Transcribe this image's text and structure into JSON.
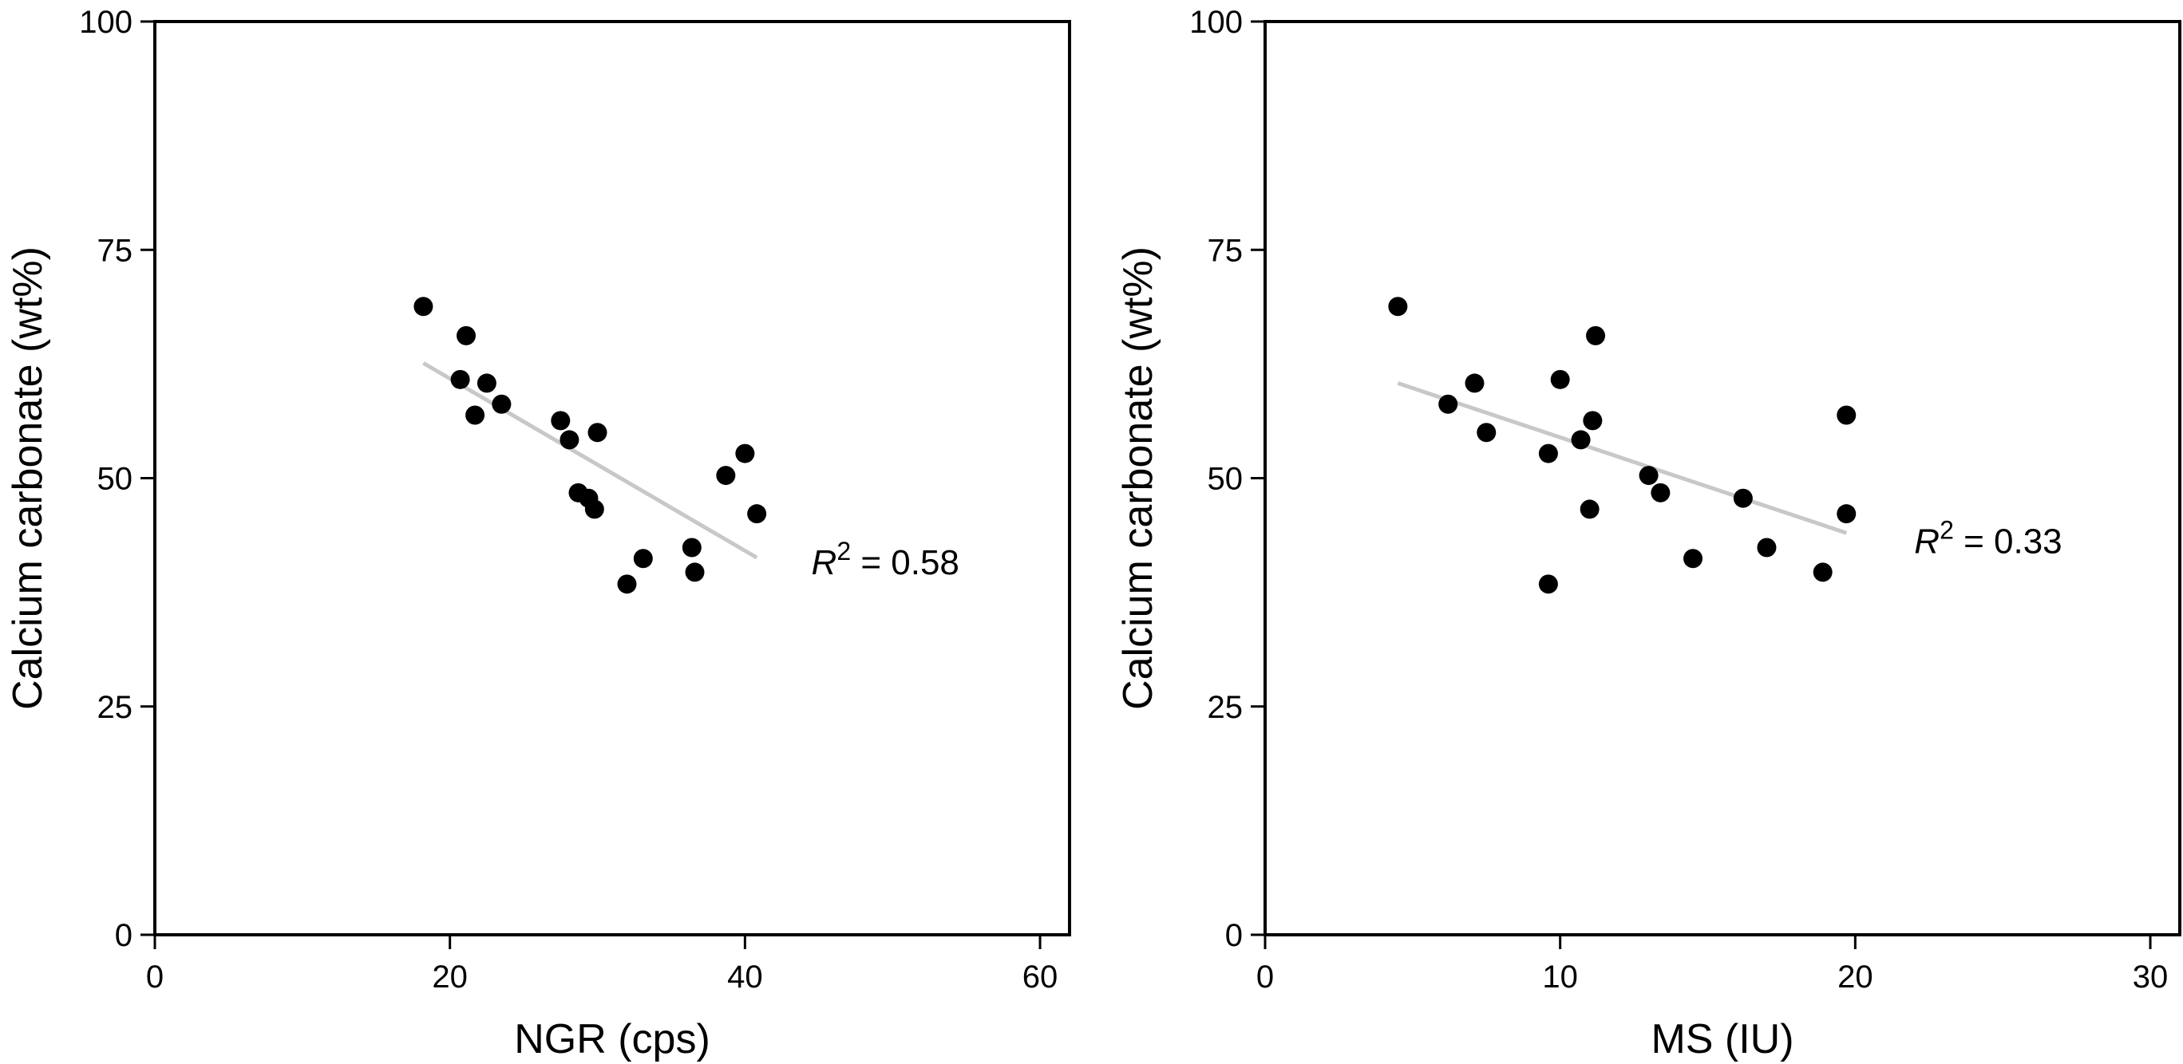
{
  "chart_data": [
    {
      "type": "scatter",
      "xlabel": "NGR (cps)",
      "ylabel": "Calcium carbonate (wt%)",
      "xlim": [
        0,
        62
      ],
      "ylim": [
        0,
        100
      ],
      "xticks": [
        0,
        20,
        40,
        60
      ],
      "yticks": [
        0,
        25,
        50,
        75,
        100
      ],
      "grid": false,
      "points": [
        {
          "x": 18.2,
          "y": 68.8
        },
        {
          "x": 21.1,
          "y": 65.6
        },
        {
          "x": 20.7,
          "y": 60.8
        },
        {
          "x": 22.5,
          "y": 60.4
        },
        {
          "x": 23.5,
          "y": 58.1
        },
        {
          "x": 21.7,
          "y": 56.9
        },
        {
          "x": 27.5,
          "y": 56.3
        },
        {
          "x": 30.0,
          "y": 55.0
        },
        {
          "x": 28.1,
          "y": 54.2
        },
        {
          "x": 28.7,
          "y": 48.4
        },
        {
          "x": 29.4,
          "y": 47.8
        },
        {
          "x": 29.8,
          "y": 46.6
        },
        {
          "x": 40.0,
          "y": 52.7
        },
        {
          "x": 38.7,
          "y": 50.3
        },
        {
          "x": 40.8,
          "y": 46.1
        },
        {
          "x": 36.4,
          "y": 42.4
        },
        {
          "x": 33.1,
          "y": 41.2
        },
        {
          "x": 36.6,
          "y": 39.7
        },
        {
          "x": 32.0,
          "y": 38.4
        }
      ],
      "trendline": {
        "x": [
          18.2,
          40.8
        ],
        "y": [
          62.6,
          41.3
        ]
      },
      "annotation": {
        "symbol": "R",
        "exponent": "2",
        "value": " = 0.58",
        "x": 44.5,
        "y": 40.7
      }
    },
    {
      "type": "scatter",
      "xlabel": "MS (IU)",
      "ylabel": "Calcium carbonate (wt%)",
      "xlim": [
        0,
        31
      ],
      "ylim": [
        0,
        100
      ],
      "xticks": [
        0,
        10,
        20,
        30
      ],
      "yticks": [
        0,
        25,
        50,
        75,
        100
      ],
      "grid": false,
      "points": [
        {
          "x": 4.5,
          "y": 68.8
        },
        {
          "x": 11.2,
          "y": 65.6
        },
        {
          "x": 10.0,
          "y": 60.8
        },
        {
          "x": 7.1,
          "y": 60.4
        },
        {
          "x": 6.2,
          "y": 58.1
        },
        {
          "x": 19.7,
          "y": 56.9
        },
        {
          "x": 11.1,
          "y": 56.3
        },
        {
          "x": 7.5,
          "y": 55.0
        },
        {
          "x": 10.7,
          "y": 54.2
        },
        {
          "x": 9.6,
          "y": 52.7
        },
        {
          "x": 13.0,
          "y": 50.3
        },
        {
          "x": 13.4,
          "y": 48.4
        },
        {
          "x": 16.2,
          "y": 47.8
        },
        {
          "x": 11.0,
          "y": 46.6
        },
        {
          "x": 19.7,
          "y": 46.1
        },
        {
          "x": 17.0,
          "y": 42.4
        },
        {
          "x": 14.5,
          "y": 41.2
        },
        {
          "x": 18.9,
          "y": 39.7
        },
        {
          "x": 9.6,
          "y": 38.4
        }
      ],
      "trendline": {
        "x": [
          4.5,
          19.7
        ],
        "y": [
          60.4,
          44.0
        ]
      },
      "annotation": {
        "symbol": "R",
        "exponent": "2",
        "value": " = 0.33",
        "x": 22.0,
        "y": 43.0
      }
    }
  ]
}
